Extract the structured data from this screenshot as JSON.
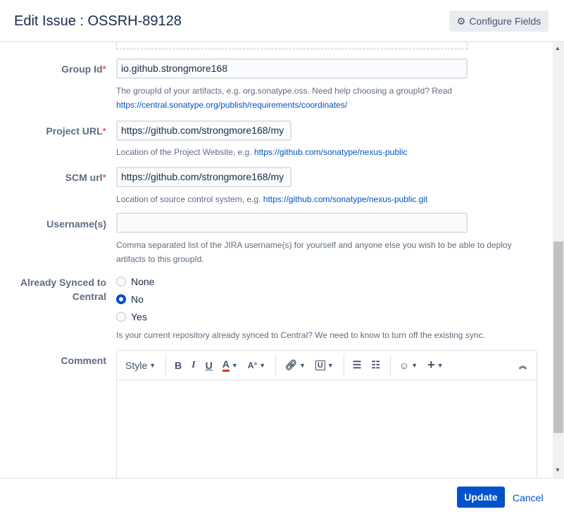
{
  "header": {
    "title": "Edit Issue : OSSRH-89128",
    "configure_label": "Configure Fields"
  },
  "fields": {
    "group_id": {
      "label": "Group Id",
      "value": "io.github.strongmore168",
      "help": "The groupId of your artifacts, e.g. org.sonatype.oss. Need help choosing a groupId? Read",
      "link": "https://central.sonatype.org/publish/requirements/coordinates/"
    },
    "project_url": {
      "label": "Project URL",
      "value": "https://github.com/strongmore168/my",
      "help": "Location of the Project Website, e.g.",
      "link": "https://github.com/sonatype/nexus-public"
    },
    "scm_url": {
      "label": "SCM url",
      "value": "https://github.com/strongmore168/my",
      "help": "Location of source control system, e.g.",
      "link": "https://github.com/sonatype/nexus-public.git"
    },
    "usernames": {
      "label": "Username(s)",
      "value": "",
      "help": "Comma separated list of the JIRA username(s) for yourself and anyone else you wish to be able to deploy artifacts to this groupId."
    },
    "synced": {
      "label": "Already Synced to Central",
      "options": [
        "None",
        "No",
        "Yes"
      ],
      "selected": "No",
      "help": "Is your current repository already synced to Central? We need to know to turn off the existing sync."
    },
    "comment": {
      "label": "Comment",
      "style_label": "Style"
    }
  },
  "required_marker": "*",
  "footer": {
    "update_label": "Update",
    "cancel_label": "Cancel"
  }
}
